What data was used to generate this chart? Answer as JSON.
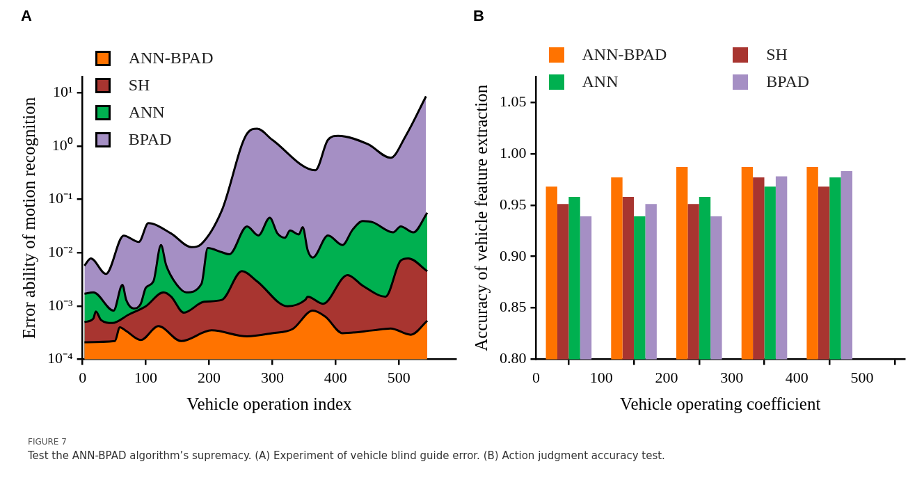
{
  "chart_data": [
    {
      "type": "area",
      "title": "A",
      "xlabel": "Vehicle operation index",
      "ylabel": "Error ability of motion recognition",
      "log": "y",
      "legend": "top left",
      "xlim": [
        0,
        590
      ],
      "xticks": [
        0,
        100,
        200,
        300,
        400,
        500
      ],
      "ylim": [
        0.0001,
        20
      ],
      "yticks": [
        {
          "value": 0.0001,
          "label": "10⁻⁴"
        },
        {
          "value": 0.001,
          "label": "10⁻³"
        },
        {
          "value": 0.01,
          "label": "10⁻²"
        },
        {
          "value": 0.1,
          "label": "10⁻¹"
        },
        {
          "value": 1,
          "label": "10⁰"
        },
        {
          "value": 10,
          "label": "10¹"
        }
      ],
      "series": [
        {
          "name": "ANN-BPAD",
          "color": "#ff7300",
          "x": [
            3,
            51,
            59,
            69,
            92,
            120,
            156,
            204,
            260,
            300,
            332,
            364,
            384,
            411,
            459,
            487,
            519,
            545
          ],
          "values": [
            0.00021,
            0.00022,
            0.0004,
            0.00034,
            0.00023,
            0.00042,
            0.00022,
            0.00035,
            0.00027,
            0.00031,
            0.00037,
            0.00082,
            0.00063,
            0.00031,
            0.00035,
            0.00038,
            0.00029,
            0.00053
          ]
        },
        {
          "name": "SH",
          "color": "#a83530",
          "x": [
            3,
            17,
            21,
            29,
            47,
            73,
            100,
            128,
            140,
            160,
            192,
            220,
            252,
            276,
            324,
            352,
            356,
            380,
            419,
            443,
            479,
            503,
            515,
            545
          ],
          "values": [
            0.0005,
            0.00058,
            0.00079,
            0.00055,
            0.00048,
            0.00069,
            0.00099,
            0.0018,
            0.0015,
            0.00075,
            0.0012,
            0.0013,
            0.0045,
            0.0029,
            0.00099,
            0.0013,
            0.0015,
            0.0011,
            0.0038,
            0.0024,
            0.0015,
            0.0071,
            0.0078,
            0.0045
          ]
        },
        {
          "name": "ANN",
          "color": "#00b050",
          "x": [
            3,
            17,
            49,
            63,
            69,
            81,
            92,
            100,
            112,
            124,
            132,
            148,
            164,
            188,
            198,
            220,
            232,
            260,
            278,
            296,
            308,
            320,
            328,
            342,
            348,
            356,
            364,
            388,
            411,
            427,
            443,
            459,
            491,
            503,
            523,
            545
          ],
          "values": [
            0.0017,
            0.0018,
            0.00082,
            0.0025,
            0.0013,
            0.0009,
            0.0011,
            0.0022,
            0.0029,
            0.0139,
            0.0059,
            0.0026,
            0.0018,
            0.0026,
            0.0122,
            0.0102,
            0.0093,
            0.031,
            0.021,
            0.045,
            0.023,
            0.019,
            0.026,
            0.022,
            0.03,
            0.011,
            0.0081,
            0.021,
            0.0139,
            0.027,
            0.039,
            0.037,
            0.024,
            0.031,
            0.024,
            0.056
          ]
        },
        {
          "name": "BPAD",
          "color": "#a58fc4",
          "x": [
            3,
            13,
            37,
            65,
            89,
            104,
            140,
            172,
            188,
            220,
            260,
            276,
            300,
            368,
            388,
            404,
            451,
            487,
            511,
            543
          ],
          "values": [
            0.0057,
            0.0078,
            0.004,
            0.0208,
            0.0159,
            0.0357,
            0.0229,
            0.0127,
            0.0146,
            0.061,
            1.7,
            2.1,
            1.3,
            0.35,
            1.3,
            1.55,
            1.08,
            0.6,
            1.55,
            8.5
          ]
        }
      ],
      "annotations": [
        "FIGURE 7",
        "Test the ANN-BPAD algorithm’s supremacy. (A) Experiment of vehicle blind guide error. (B) Action judgment accuracy test."
      ]
    },
    {
      "type": "bar",
      "title": "B",
      "xlabel": "Vehicle operating coefficient",
      "ylabel": "Accuracy of vehicle feature extraction",
      "legend": "top",
      "x": [
        50,
        150,
        250,
        350,
        450
      ],
      "xlim": [
        0,
        565
      ],
      "xticks": [
        0,
        100,
        200,
        300,
        400,
        500
      ],
      "ylim": [
        0.8,
        1.075
      ],
      "yticks": [
        {
          "value": 0.8,
          "label": "0.80"
        },
        0.85,
        {
          "value": 0.9,
          "label": "0.90"
        },
        0.95,
        {
          "value": 1,
          "label": "1.00"
        },
        1.05
      ],
      "series": [
        {
          "name": "ANN-BPAD",
          "color": "#ff7300",
          "values": [
            0.968,
            0.977,
            0.987,
            0.987,
            0.987
          ]
        },
        {
          "name": "SH",
          "color": "#a83530",
          "values": [
            0.951,
            0.958,
            0.951,
            0.977,
            0.968
          ]
        },
        {
          "name": "ANN",
          "color": "#00b050",
          "values": [
            0.958,
            0.939,
            0.958,
            0.968,
            0.977
          ]
        },
        {
          "name": "BPAD",
          "color": "#a58fc4",
          "values": [
            0.939,
            0.951,
            0.939,
            0.978,
            0.983
          ]
        }
      ]
    }
  ]
}
